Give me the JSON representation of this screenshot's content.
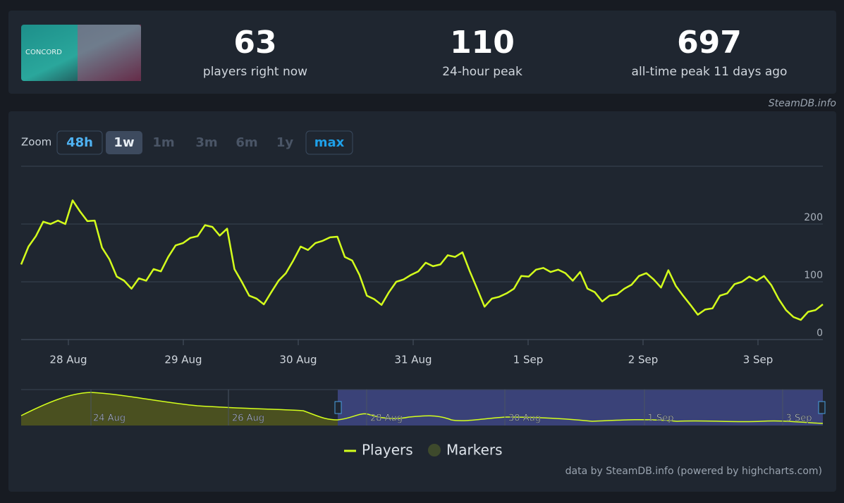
{
  "header": {
    "logo_text": "CONCORD",
    "stats": [
      {
        "value": 63,
        "label": "players right now"
      },
      {
        "value": 110,
        "label": "24-hour peak"
      },
      {
        "value": 697,
        "label": "all-time peak 11 days ago"
      }
    ],
    "source": "SteamDB.info"
  },
  "zoom": {
    "label": "Zoom",
    "buttons": [
      "48h",
      "1w",
      "1m",
      "3m",
      "6m",
      "1y",
      "max"
    ]
  },
  "chart_data": {
    "type": "line",
    "x_labels": [
      "28 Aug",
      "29 Aug",
      "30 Aug",
      "31 Aug",
      "1 Sep",
      "2 Sep",
      "3 Sep"
    ],
    "ylim": [
      0,
      300
    ],
    "yticks": [
      0,
      100,
      200
    ],
    "grid": true,
    "series": [
      {
        "name": "Players",
        "color": "#d4ff1c",
        "values": [
          130,
          161,
          179,
          204,
          200,
          206,
          200,
          241,
          222,
          205,
          206,
          159,
          139,
          109,
          102,
          88,
          106,
          102,
          122,
          118,
          143,
          163,
          167,
          176,
          179,
          198,
          195,
          180,
          192,
          122,
          100,
          76,
          71,
          61,
          82,
          102,
          115,
          137,
          161,
          155,
          167,
          171,
          177,
          178,
          143,
          137,
          112,
          76,
          70,
          60,
          82,
          100,
          104,
          112,
          118,
          133,
          127,
          130,
          146,
          143,
          151,
          118,
          88,
          57,
          71,
          74,
          80,
          88,
          110,
          109,
          121,
          124,
          117,
          121,
          115,
          102,
          117,
          88,
          82,
          66,
          76,
          78,
          88,
          95,
          110,
          115,
          104,
          90,
          120,
          93,
          76,
          60,
          43,
          52,
          54,
          76,
          80,
          96,
          100,
          109,
          102,
          110,
          94,
          70,
          51,
          39,
          34,
          48,
          51,
          61
        ]
      },
      {
        "name": "Markers",
        "color": "#3e4a2c",
        "values": []
      }
    ],
    "navigator_labels": [
      "24 Aug",
      "26 Aug",
      "28 Aug",
      "30 Aug",
      "1 Sep",
      "3 Sep"
    ],
    "credit": "data by SteamDB.info (powered by highcharts.com)"
  }
}
